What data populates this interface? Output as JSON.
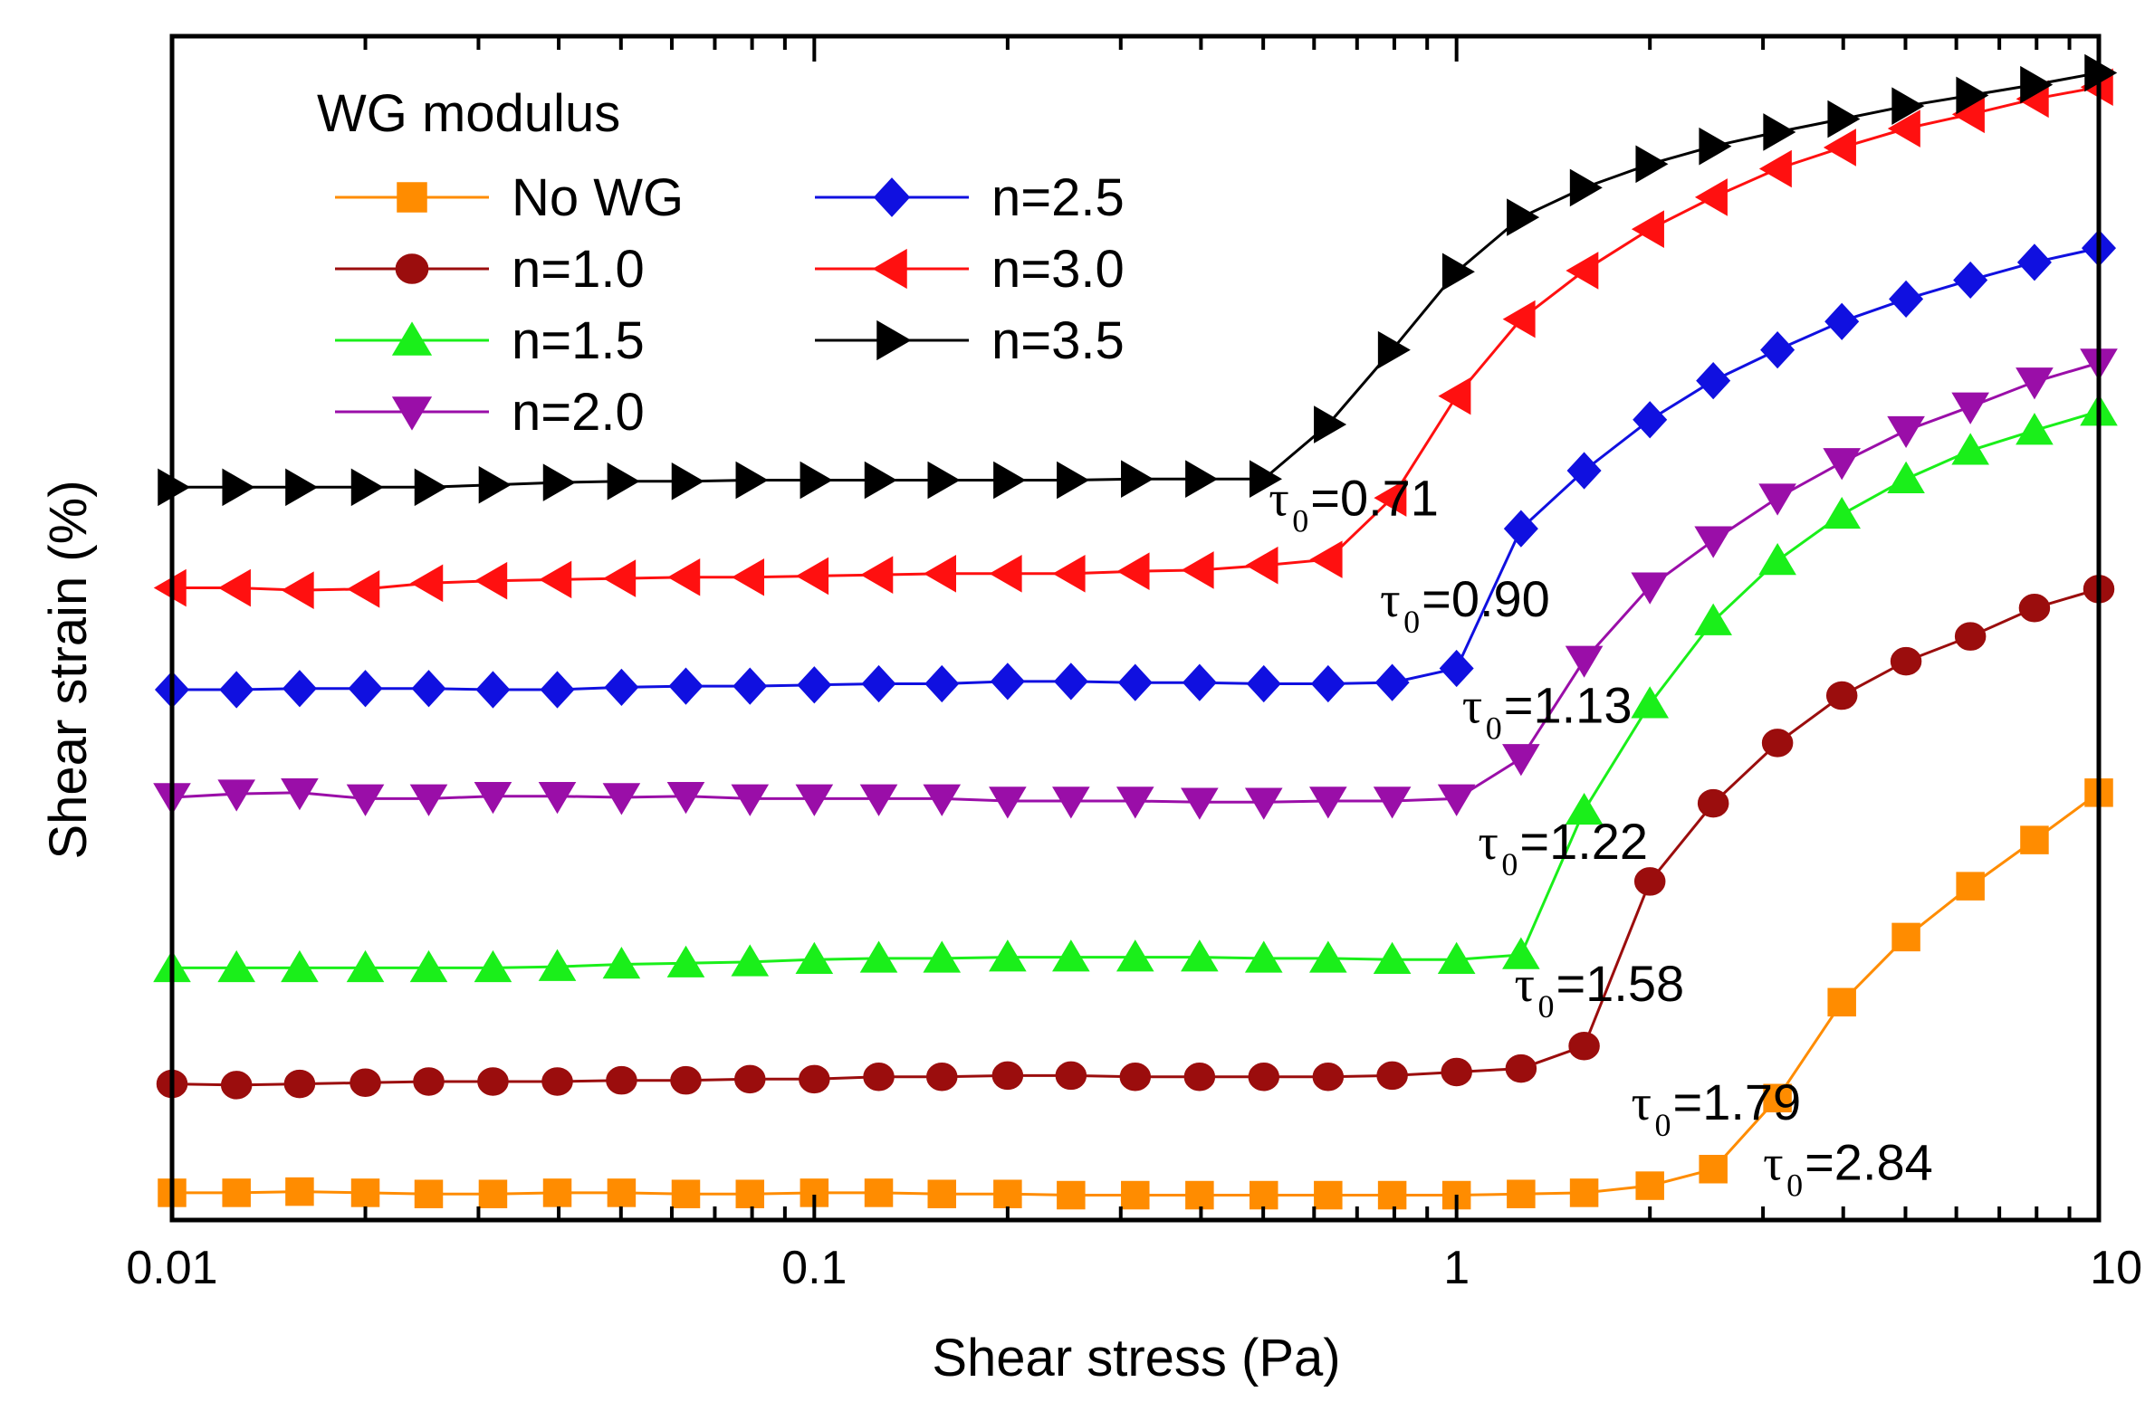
{
  "chart_data": {
    "type": "line",
    "title": "",
    "xlabel": "Shear stress (Pa)",
    "ylabel": "Shear strain (%)",
    "xscale": "log",
    "xlim": [
      0.01,
      10
    ],
    "ylim": [
      0,
      100
    ],
    "y_ticks_shown": false,
    "x_ticks": [
      {
        "value": 0.01,
        "label": "0.01"
      },
      {
        "value": 0.1,
        "label": "0.1"
      },
      {
        "value": 1,
        "label": "1"
      },
      {
        "value": 10,
        "label": "10"
      }
    ],
    "legend": {
      "title": "WG modulus",
      "position": "top-left",
      "columns": 2
    },
    "x": [
      0.01,
      0.0126,
      0.0158,
      0.02,
      0.0251,
      0.0316,
      0.0398,
      0.0501,
      0.0631,
      0.0794,
      0.1,
      0.126,
      0.158,
      0.2,
      0.251,
      0.316,
      0.398,
      0.501,
      0.631,
      0.794,
      1.0,
      1.26,
      1.58,
      2.0,
      2.51,
      3.16,
      3.98,
      5.01,
      6.31,
      7.94,
      10.0
    ],
    "series": [
      {
        "name": "No WG",
        "color": "#ff8c00",
        "marker": "square",
        "values": [
          2.3,
          2.3,
          2.4,
          2.3,
          2.2,
          2.2,
          2.3,
          2.3,
          2.2,
          2.2,
          2.3,
          2.3,
          2.2,
          2.2,
          2.1,
          2.1,
          2.1,
          2.1,
          2.1,
          2.1,
          2.1,
          2.2,
          2.3,
          2.9,
          4.3,
          10.3,
          18.4,
          23.9,
          28.2,
          32.1,
          36.1
        ]
      },
      {
        "name": "n=1.0",
        "color": "#9b0d0d",
        "marker": "circle",
        "values": [
          11.5,
          11.4,
          11.5,
          11.6,
          11.7,
          11.7,
          11.7,
          11.8,
          11.8,
          11.9,
          11.9,
          12.1,
          12.1,
          12.2,
          12.2,
          12.1,
          12.1,
          12.1,
          12.1,
          12.2,
          12.5,
          12.8,
          14.7,
          28.6,
          35.2,
          40.3,
          44.3,
          47.2,
          49.3,
          51.7,
          53.3
        ]
      },
      {
        "name": "n=1.5",
        "color": "#1aef1a",
        "marker": "triangle-up",
        "values": [
          21.3,
          21.3,
          21.3,
          21.3,
          21.3,
          21.3,
          21.4,
          21.6,
          21.7,
          21.8,
          22.0,
          22.1,
          22.1,
          22.2,
          22.2,
          22.2,
          22.2,
          22.1,
          22.1,
          22.0,
          22.0,
          22.4,
          34.6,
          43.6,
          50.6,
          55.7,
          59.6,
          62.6,
          65.0,
          66.7,
          68.3
        ]
      },
      {
        "name": "n=2.0",
        "color": "#9a0ea8",
        "marker": "triangle-down",
        "values": [
          35.7,
          36.0,
          36.1,
          35.6,
          35.6,
          35.8,
          35.8,
          35.7,
          35.8,
          35.6,
          35.6,
          35.6,
          35.6,
          35.4,
          35.4,
          35.4,
          35.3,
          35.3,
          35.4,
          35.4,
          35.6,
          39.0,
          47.3,
          53.5,
          57.4,
          61.0,
          64.0,
          66.7,
          68.7,
          70.8,
          72.4
        ]
      },
      {
        "name": "n=2.5",
        "color": "#1010e0",
        "marker": "diamond",
        "values": [
          44.8,
          44.8,
          44.9,
          44.9,
          44.9,
          44.8,
          44.8,
          45.0,
          45.1,
          45.1,
          45.2,
          45.3,
          45.3,
          45.5,
          45.5,
          45.4,
          45.4,
          45.3,
          45.3,
          45.4,
          46.6,
          58.4,
          63.3,
          67.6,
          70.9,
          73.5,
          75.9,
          77.8,
          79.4,
          80.9,
          82.1
        ]
      },
      {
        "name": "n=3.0",
        "color": "#ff1010",
        "marker": "triangle-left",
        "values": [
          53.4,
          53.4,
          53.2,
          53.3,
          53.8,
          54.0,
          54.1,
          54.2,
          54.3,
          54.3,
          54.4,
          54.5,
          54.6,
          54.6,
          54.6,
          54.8,
          54.9,
          55.3,
          55.8,
          61.0,
          69.6,
          76.1,
          80.2,
          83.7,
          86.4,
          88.8,
          90.6,
          92.2,
          93.4,
          94.7,
          95.7
        ]
      },
      {
        "name": "n=3.5",
        "color": "#000000",
        "marker": "triangle-right",
        "values": [
          61.9,
          61.9,
          61.9,
          61.9,
          61.9,
          62.1,
          62.3,
          62.4,
          62.4,
          62.5,
          62.5,
          62.5,
          62.5,
          62.5,
          62.5,
          62.6,
          62.6,
          62.6,
          67.2,
          73.5,
          80.1,
          84.7,
          87.2,
          89.2,
          90.7,
          91.9,
          93.0,
          94.1,
          95.0,
          95.9,
          96.9
        ]
      }
    ],
    "annotations": [
      {
        "sub_symbol": "τ",
        "subscript": "0",
        "text": "=0.71",
        "x": 0.51,
        "y": 59.5
      },
      {
        "sub_symbol": "τ",
        "subscript": "0",
        "text": "=0.90",
        "x": 0.76,
        "y": 51.0
      },
      {
        "sub_symbol": "τ",
        "subscript": "0",
        "text": "=1.13",
        "x": 1.02,
        "y": 42.0
      },
      {
        "sub_symbol": "τ",
        "subscript": "0",
        "text": "=1.22",
        "x": 1.08,
        "y": 30.5
      },
      {
        "sub_symbol": "τ",
        "subscript": "0",
        "text": "=1.58",
        "x": 1.23,
        "y": 18.5
      },
      {
        "sub_symbol": "τ",
        "subscript": "0",
        "text": "=1.79",
        "x": 1.87,
        "y": 8.5
      },
      {
        "sub_symbol": "τ",
        "subscript": "0",
        "text": "=2.84",
        "x": 3.0,
        "y": 3.4
      }
    ]
  }
}
